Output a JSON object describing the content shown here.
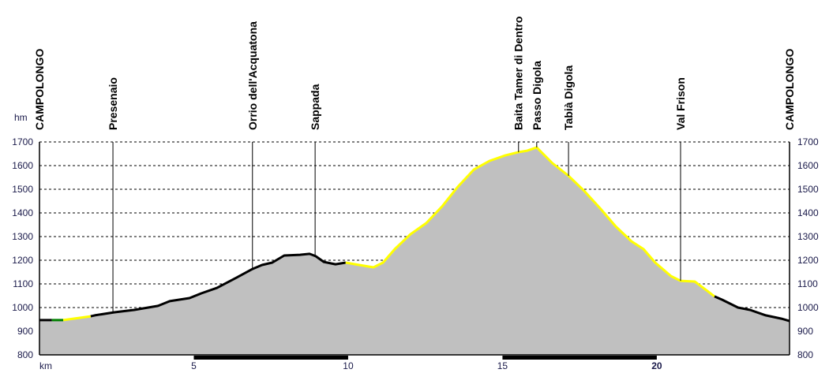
{
  "chart_data": {
    "type": "area",
    "title": "",
    "ylabel": "hm",
    "xlabel": "km",
    "ylim": [
      800,
      1700
    ],
    "xlim": [
      0,
      24.3
    ],
    "y_ticks": [
      800,
      900,
      1000,
      1100,
      1200,
      1300,
      1400,
      1500,
      1600,
      1700
    ],
    "x_ticks": [
      5,
      10,
      15,
      20
    ],
    "grid": true,
    "profile": [
      [
        0,
        947
      ],
      [
        0.38,
        947
      ],
      [
        0.77,
        947
      ],
      [
        1.66,
        963
      ],
      [
        1.79,
        967
      ],
      [
        2.43,
        980
      ],
      [
        3.07,
        990
      ],
      [
        3.84,
        1007
      ],
      [
        4.22,
        1027
      ],
      [
        4.86,
        1040
      ],
      [
        5.24,
        1060
      ],
      [
        5.75,
        1083
      ],
      [
        6.39,
        1127
      ],
      [
        6.9,
        1163
      ],
      [
        7.21,
        1180
      ],
      [
        7.54,
        1190
      ],
      [
        7.93,
        1220
      ],
      [
        8.44,
        1223
      ],
      [
        8.75,
        1227
      ],
      [
        8.95,
        1217
      ],
      [
        9.21,
        1193
      ],
      [
        9.59,
        1183
      ],
      [
        9.92,
        1190
      ],
      [
        10.36,
        1180
      ],
      [
        10.82,
        1170
      ],
      [
        11.13,
        1190
      ],
      [
        11.51,
        1247
      ],
      [
        12.02,
        1310
      ],
      [
        12.53,
        1357
      ],
      [
        13.04,
        1427
      ],
      [
        13.55,
        1510
      ],
      [
        14.07,
        1583
      ],
      [
        14.58,
        1620
      ],
      [
        15.09,
        1643
      ],
      [
        15.52,
        1657
      ],
      [
        15.8,
        1663
      ],
      [
        16.11,
        1677
      ],
      [
        16.62,
        1610
      ],
      [
        17.14,
        1557
      ],
      [
        17.65,
        1493
      ],
      [
        18.16,
        1420
      ],
      [
        18.67,
        1343
      ],
      [
        19.18,
        1280
      ],
      [
        19.57,
        1247
      ],
      [
        19.95,
        1190
      ],
      [
        20.46,
        1133
      ],
      [
        20.77,
        1113
      ],
      [
        21.23,
        1110
      ],
      [
        21.61,
        1073
      ],
      [
        21.87,
        1047
      ],
      [
        22.12,
        1033
      ],
      [
        22.63,
        1000
      ],
      [
        23.02,
        990
      ],
      [
        23.53,
        967
      ],
      [
        24.04,
        953
      ],
      [
        24.3,
        943
      ]
    ],
    "segments": [
      {
        "from": 0,
        "to": 0.4,
        "color": "#000000"
      },
      {
        "from": 0.4,
        "to": 0.77,
        "color": "#008000"
      },
      {
        "from": 0.77,
        "to": 1.66,
        "color": "#ffff00"
      },
      {
        "from": 1.66,
        "to": 9.92,
        "color": "#000000"
      },
      {
        "from": 9.92,
        "to": 21.87,
        "color": "#ffff00"
      },
      {
        "from": 21.87,
        "to": 24.3,
        "color": "#000000"
      }
    ],
    "waypoints": [
      {
        "name": "CAMPOLONGO",
        "km": 0
      },
      {
        "name": "Presenaio",
        "km": 2.38
      },
      {
        "name": "Orrio dell'Acquatona",
        "km": 6.9
      },
      {
        "name": "Sappada",
        "km": 8.93
      },
      {
        "name": "Baita Tamer di Dentro",
        "km": 15.52
      },
      {
        "name": "Passo Digola",
        "km": 16.11
      },
      {
        "name": "Tabià Digola",
        "km": 17.14
      },
      {
        "name": "Val Frison",
        "km": 20.77
      },
      {
        "name": "CAMPOLONGO",
        "km": 24.3
      }
    ],
    "fill_color": "#c0c0c0"
  }
}
